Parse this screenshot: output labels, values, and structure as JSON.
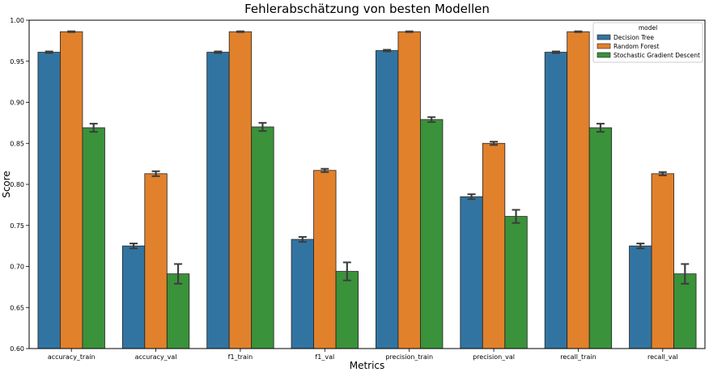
{
  "chart_data": {
    "type": "bar",
    "title": "Fehlerabschätzung von besten Modellen",
    "xlabel": "Metrics",
    "ylabel": "Score",
    "ylim": [
      0.6,
      1.0
    ],
    "yticks": [
      "0.60",
      "0.65",
      "0.70",
      "0.75",
      "0.80",
      "0.85",
      "0.90",
      "0.95",
      "1.00"
    ],
    "categories": [
      "accuracy_train",
      "accuracy_val",
      "f1_train",
      "f1_val",
      "precision_train",
      "precision_val",
      "recall_train",
      "recall_val"
    ],
    "series": [
      {
        "name": "Decision Tree",
        "color": "#3274a1",
        "values": [
          0.961,
          0.725,
          0.961,
          0.733,
          0.963,
          0.785,
          0.961,
          0.725
        ],
        "errors": [
          0.001,
          0.003,
          0.001,
          0.003,
          0.001,
          0.003,
          0.001,
          0.003
        ]
      },
      {
        "name": "Random Forest",
        "color": "#e1812c",
        "values": [
          0.986,
          0.813,
          0.986,
          0.817,
          0.986,
          0.85,
          0.986,
          0.813
        ],
        "errors": [
          0.0005,
          0.003,
          0.0005,
          0.002,
          0.0005,
          0.002,
          0.0005,
          0.002
        ]
      },
      {
        "name": "Stochastic Gradient Descent",
        "color": "#3a923a",
        "values": [
          0.869,
          0.691,
          0.87,
          0.694,
          0.879,
          0.761,
          0.869,
          0.691
        ],
        "errors": [
          0.005,
          0.012,
          0.005,
          0.011,
          0.003,
          0.008,
          0.005,
          0.012
        ]
      }
    ],
    "legend_title": "model",
    "legend_position": "top-right",
    "grid": false
  }
}
